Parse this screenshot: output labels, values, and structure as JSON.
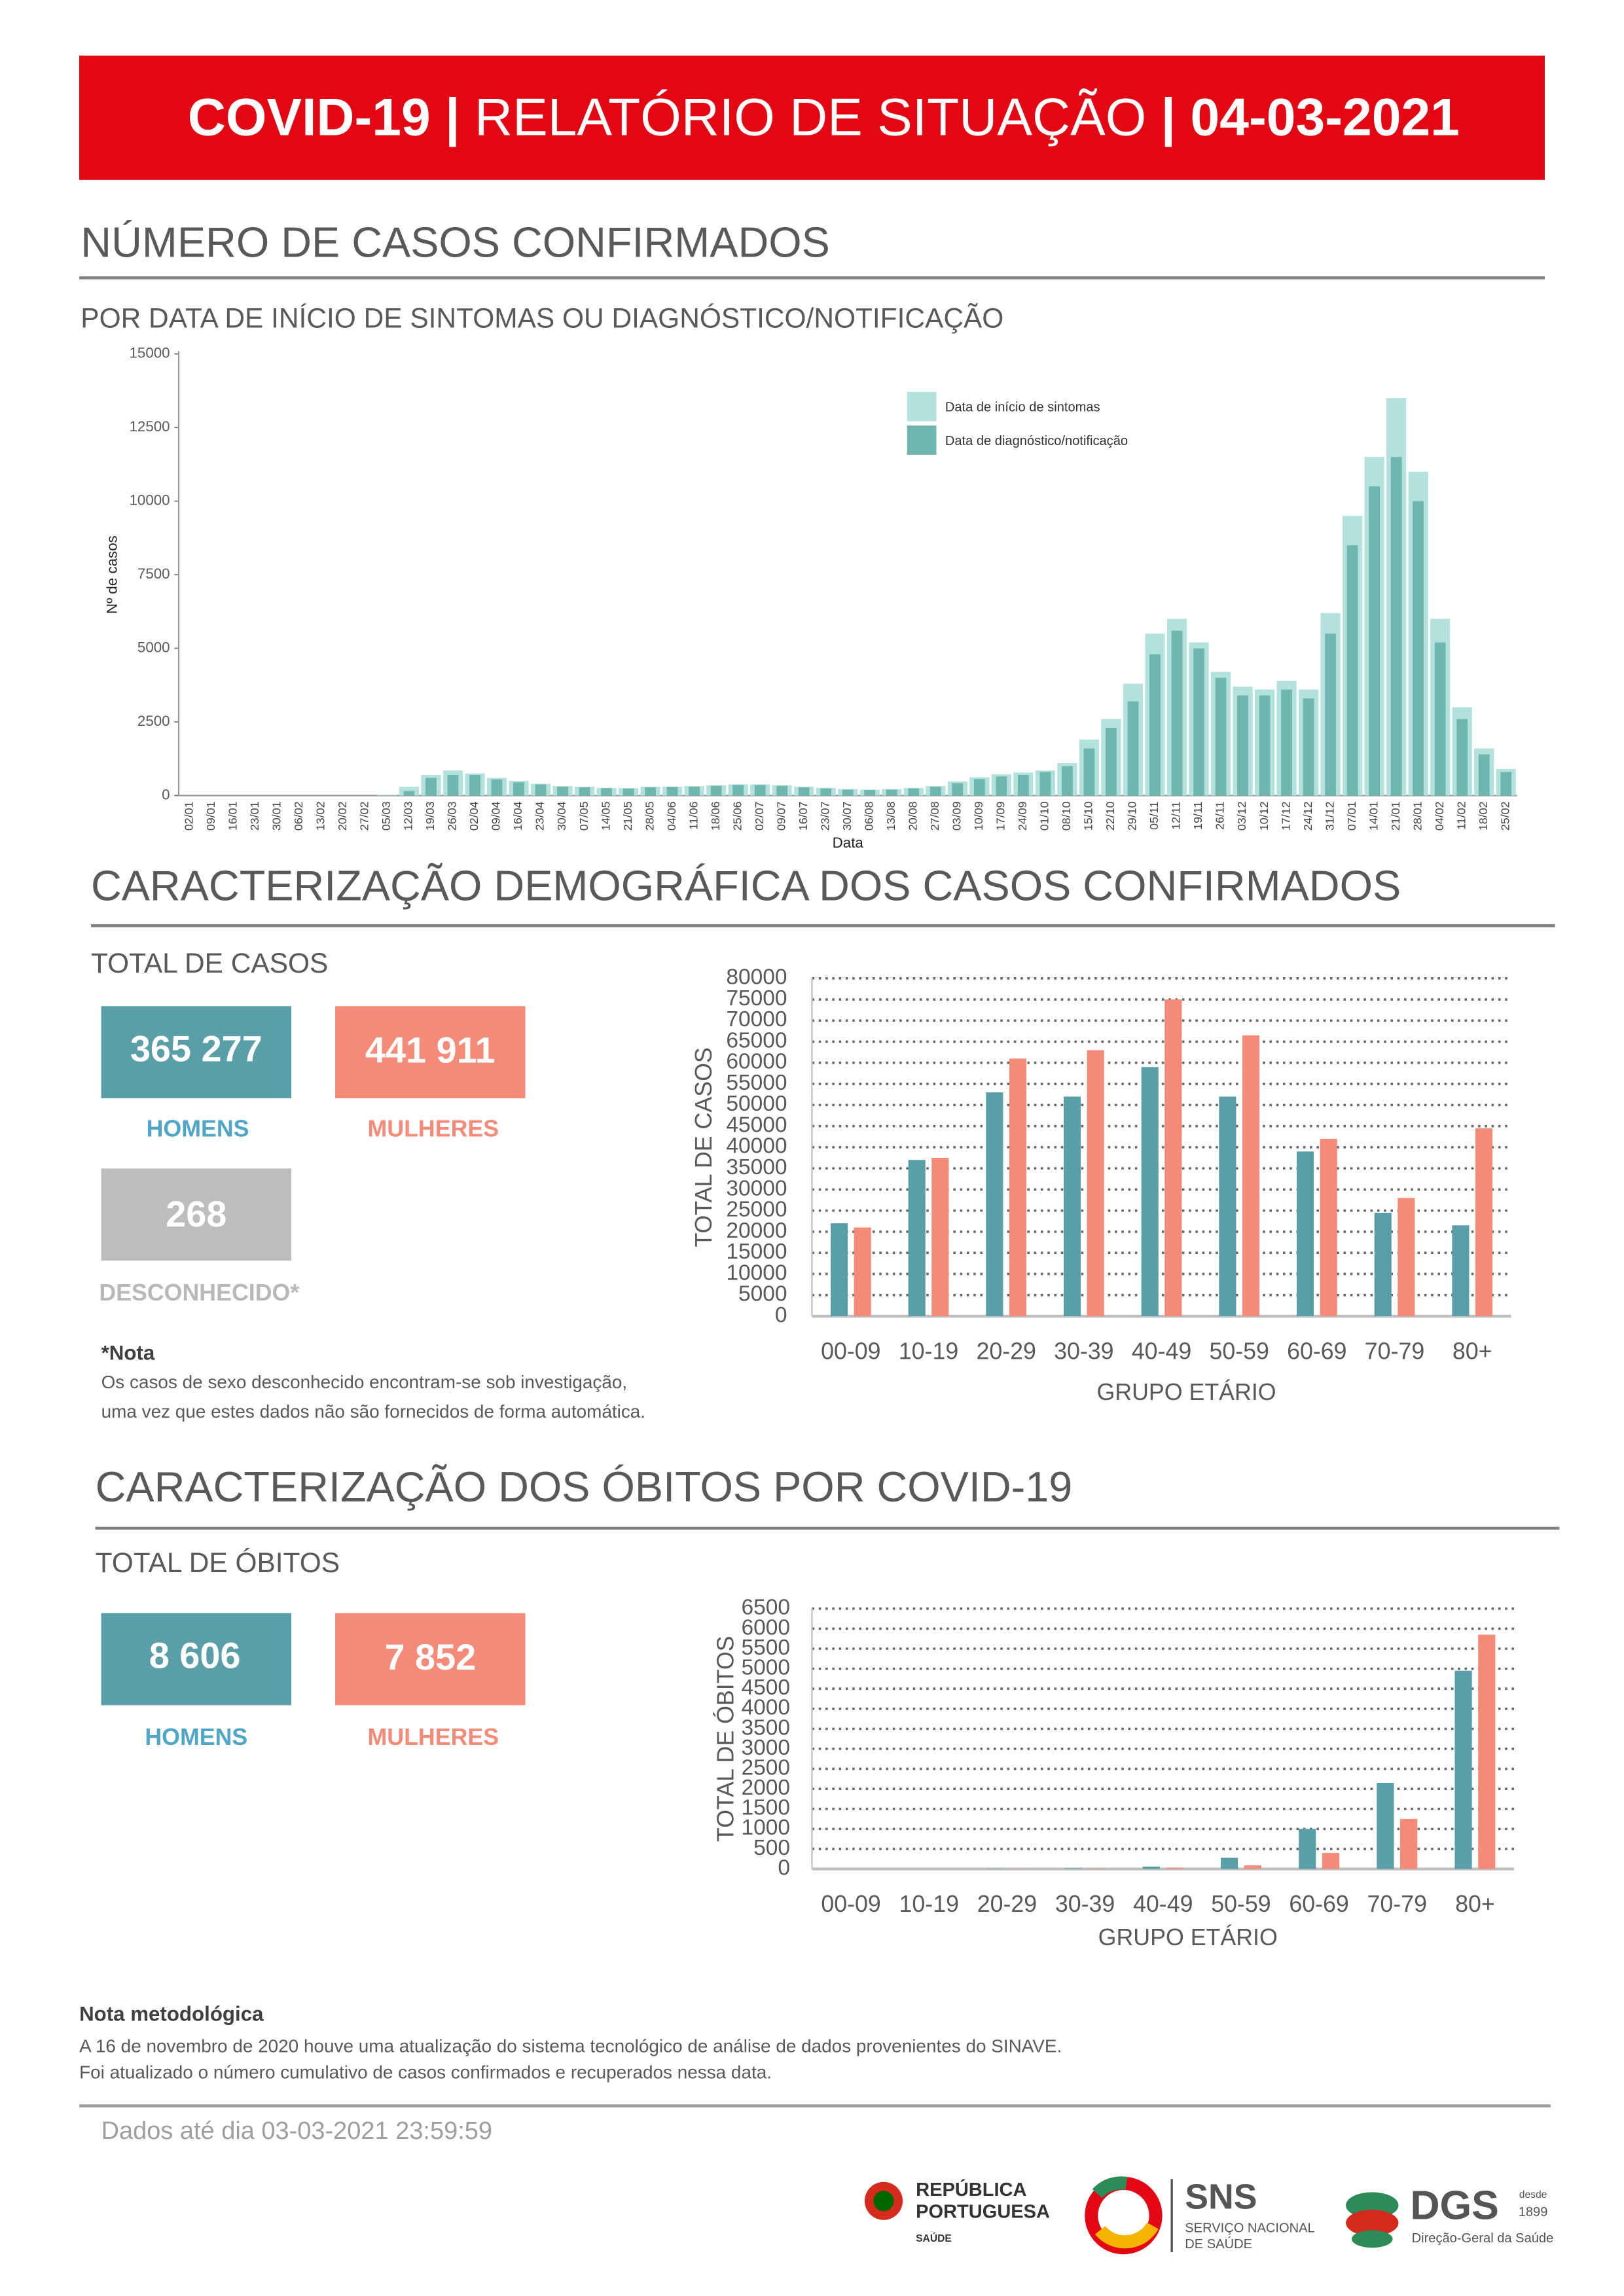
{
  "header": {
    "title_parts": [
      "COVID-19",
      "|",
      "RELATÓRIO DE SITUAÇÃO",
      "|",
      "04-03-2021"
    ]
  },
  "section_cases": {
    "heading": "NÚMERO DE CASOS CONFIRMADOS",
    "subheading": "POR DATA DE INÍCIO DE SINTOMAS OU DIAGNÓSTICO/NOTIFICAÇÃO"
  },
  "section_demographics": {
    "heading": "CARACTERIZAÇÃO DEMOGRÁFICA DOS CASOS CONFIRMADOS",
    "total_label": "TOTAL DE CASOS",
    "men": {
      "value": "365 277",
      "label": "HOMENS"
    },
    "women": {
      "value": "441 911",
      "label": "MULHERES"
    },
    "unknown": {
      "value": "268",
      "label": "DESCONHECIDO*"
    },
    "note_title": "*Nota",
    "note_lines": [
      "Os casos de sexo desconhecido encontram-se sob investigação,",
      "uma vez que estes dados não são fornecidos de forma automática."
    ]
  },
  "section_deaths": {
    "heading": "CARACTERIZAÇÃO DOS ÓBITOS POR COVID-19",
    "total_label": "TOTAL DE ÓBITOS",
    "men": {
      "value": "8 606",
      "label": "HOMENS"
    },
    "women": {
      "value": "7 852",
      "label": "MULHERES"
    }
  },
  "methodology": {
    "title": "Nota metodológica",
    "lines": [
      "A 16 de novembro de 2020 houve uma atualização do sistema tecnológico de análise de dados provenientes do SINAVE.",
      "Foi atualizado o número cumulativo de casos confirmados e recuperados nessa data."
    ]
  },
  "footer": {
    "data_until": "Dados até dia 03-03-2021 23:59:59",
    "logo_republica": [
      "REPÚBLICA",
      "PORTUGUESA",
      "SAÚDE"
    ],
    "logo_sns": [
      "SNS",
      "SERVIÇO NACIONAL",
      "DE SAÚDE"
    ],
    "logo_dgs": [
      "DGS",
      "desde",
      "1899",
      "Direção-Geral da Saúde"
    ]
  },
  "chart_data": [
    {
      "type": "bar",
      "xlabel": "Data",
      "ylabel": "Nº de casos",
      "categories": [
        "02/01",
        "09/01",
        "16/01",
        "23/01",
        "30/01",
        "06/02",
        "13/02",
        "20/02",
        "27/02",
        "05/03",
        "12/03",
        "19/03",
        "26/03",
        "02/04",
        "09/04",
        "16/04",
        "23/04",
        "30/04",
        "07/05",
        "14/05",
        "21/05",
        "28/05",
        "04/06",
        "11/06",
        "18/06",
        "25/06",
        "02/07",
        "09/07",
        "16/07",
        "23/07",
        "30/07",
        "06/08",
        "13/08",
        "20/08",
        "27/08",
        "03/09",
        "10/09",
        "17/09",
        "24/09",
        "01/10",
        "08/10",
        "15/10",
        "22/10",
        "29/10",
        "05/11",
        "12/11",
        "19/11",
        "26/11",
        "03/12",
        "10/12",
        "17/12",
        "24/12",
        "31/12",
        "07/01",
        "14/01",
        "21/01",
        "28/01",
        "04/02",
        "11/02",
        "18/02",
        "25/02"
      ],
      "series": [
        {
          "name": "Data de início de sintomas",
          "color": "#b3e1db",
          "values": [
            0,
            0,
            0,
            0,
            0,
            0,
            0,
            0,
            0,
            20,
            300,
            700,
            850,
            750,
            600,
            500,
            400,
            320,
            300,
            260,
            250,
            300,
            300,
            320,
            350,
            380,
            380,
            350,
            300,
            260,
            220,
            200,
            220,
            260,
            320,
            480,
            620,
            720,
            780,
            850,
            1100,
            1900,
            2600,
            3800,
            5500,
            6000,
            5200,
            4200,
            3700,
            3600,
            3900,
            3600,
            6200,
            9500,
            11500,
            13500,
            11000,
            6000,
            3000,
            1600,
            900
          ]
        },
        {
          "name": "Data de diagnóstico/notificação",
          "color": "#6fb6ae",
          "values": [
            0,
            0,
            0,
            0,
            0,
            0,
            0,
            0,
            0,
            0,
            150,
            600,
            700,
            700,
            550,
            450,
            380,
            300,
            280,
            250,
            240,
            280,
            300,
            300,
            330,
            360,
            360,
            330,
            280,
            240,
            200,
            190,
            200,
            240,
            300,
            420,
            560,
            650,
            700,
            800,
            1000,
            1600,
            2300,
            3200,
            4800,
            5600,
            5000,
            4000,
            3400,
            3400,
            3600,
            3300,
            5500,
            8500,
            10500,
            11500,
            10000,
            5200,
            2600,
            1400,
            800
          ]
        }
      ],
      "ylim": [
        0,
        15000
      ],
      "yticks": [
        0,
        2500,
        5000,
        7500,
        10000,
        12500,
        15000
      ],
      "grid": false,
      "legend": "top-right"
    },
    {
      "type": "bar",
      "xlabel": "GRUPO ETÁRIO",
      "ylabel": "TOTAL DE CASOS",
      "categories": [
        "00-09",
        "10-19",
        "20-29",
        "30-39",
        "40-49",
        "50-59",
        "60-69",
        "70-79",
        "80+"
      ],
      "series": [
        {
          "color": "#5a9fa8",
          "values": [
            22000,
            37000,
            53000,
            52000,
            59000,
            52000,
            39000,
            24500,
            21500
          ]
        },
        {
          "color": "#f48b79",
          "values": [
            21000,
            37500,
            61000,
            63000,
            75000,
            66500,
            42000,
            28000,
            44500
          ]
        }
      ],
      "ylim": [
        0,
        80000
      ],
      "yticks": [
        0,
        5000,
        10000,
        15000,
        20000,
        25000,
        30000,
        35000,
        40000,
        45000,
        50000,
        55000,
        60000,
        65000,
        70000,
        75000,
        80000
      ],
      "grid": true
    },
    {
      "type": "bar",
      "xlabel": "GRUPO ETÁRIO",
      "ylabel": "TOTAL DE ÓBITOS",
      "categories": [
        "00-09",
        "10-19",
        "20-29",
        "30-39",
        "40-49",
        "50-59",
        "60-69",
        "70-79",
        "80+"
      ],
      "series": [
        {
          "color": "#5a9fa8",
          "values": [
            0,
            0,
            5,
            15,
            60,
            280,
            1000,
            2150,
            4950
          ]
        },
        {
          "color": "#f48b79",
          "values": [
            0,
            0,
            3,
            10,
            30,
            90,
            400,
            1250,
            5850
          ]
        }
      ],
      "ylim": [
        0,
        6500
      ],
      "yticks": [
        0,
        500,
        1000,
        1500,
        2000,
        2500,
        3000,
        3500,
        4000,
        4500,
        5000,
        5500,
        6000,
        6500
      ],
      "grid": true
    }
  ]
}
